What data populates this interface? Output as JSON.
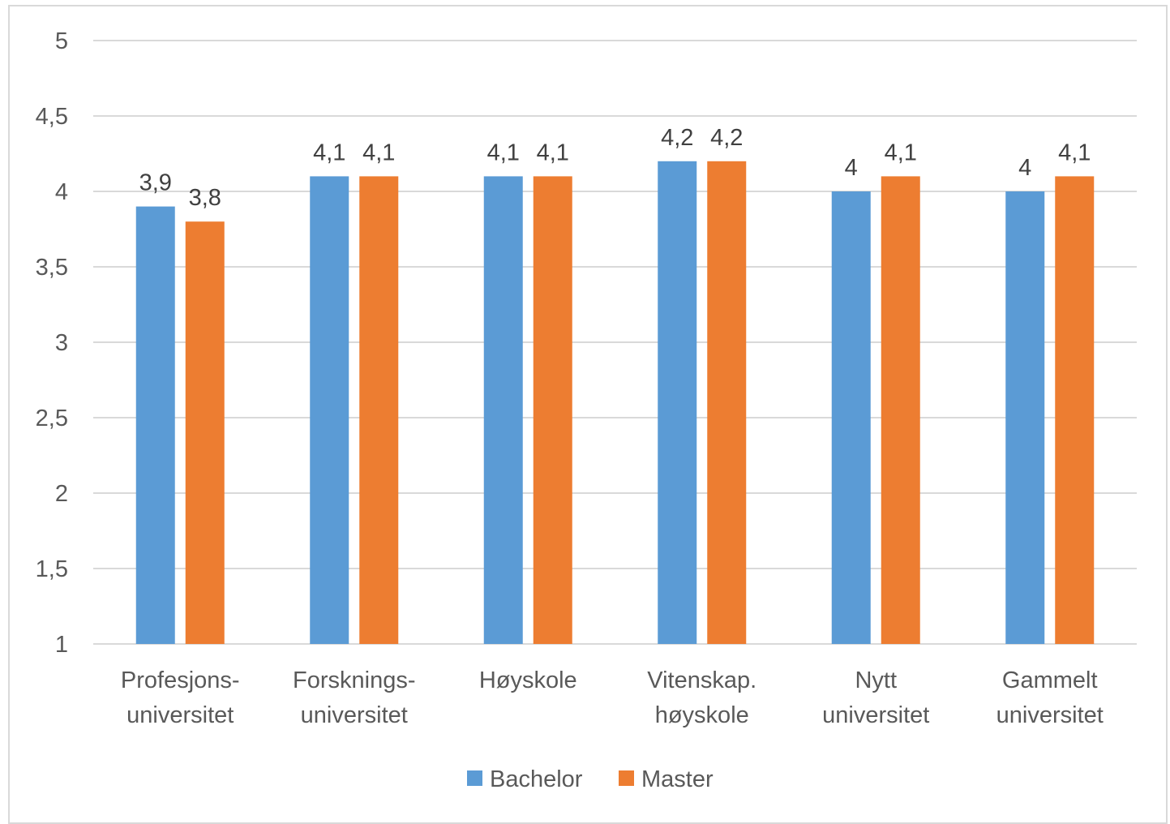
{
  "chart_data": {
    "type": "bar",
    "title": "",
    "xlabel": "",
    "ylabel": "",
    "categories": [
      [
        "Profesjons-",
        "universitet"
      ],
      [
        "Forsknings-",
        "universitet"
      ],
      [
        "Høyskole"
      ],
      [
        "Vitenskap.",
        "høyskole"
      ],
      [
        "Nytt",
        "universitet"
      ],
      [
        "Gammelt",
        "universitet"
      ]
    ],
    "series": [
      {
        "name": "Bachelor",
        "color": "#5b9bd5",
        "values": [
          3.9,
          4.1,
          4.1,
          4.2,
          4.0,
          4.0
        ],
        "labels": [
          "3,9",
          "4,1",
          "4,1",
          "4,2",
          "4",
          "4"
        ]
      },
      {
        "name": "Master",
        "color": "#ed7d31",
        "values": [
          3.8,
          4.1,
          4.1,
          4.2,
          4.1,
          4.1
        ],
        "labels": [
          "3,8",
          "4,1",
          "4,1",
          "4,2",
          "4,1",
          "4,1"
        ]
      }
    ],
    "ylim": [
      1,
      5
    ],
    "yticks": [
      1,
      1.5,
      2,
      2.5,
      3,
      3.5,
      4,
      4.5,
      5
    ],
    "ytick_labels": [
      "1",
      "1,5",
      "2",
      "2,5",
      "3",
      "3,5",
      "4",
      "4,5",
      "5"
    ],
    "grid": true,
    "legend_position": "bottom",
    "grid_color": "#d9d9d9"
  }
}
